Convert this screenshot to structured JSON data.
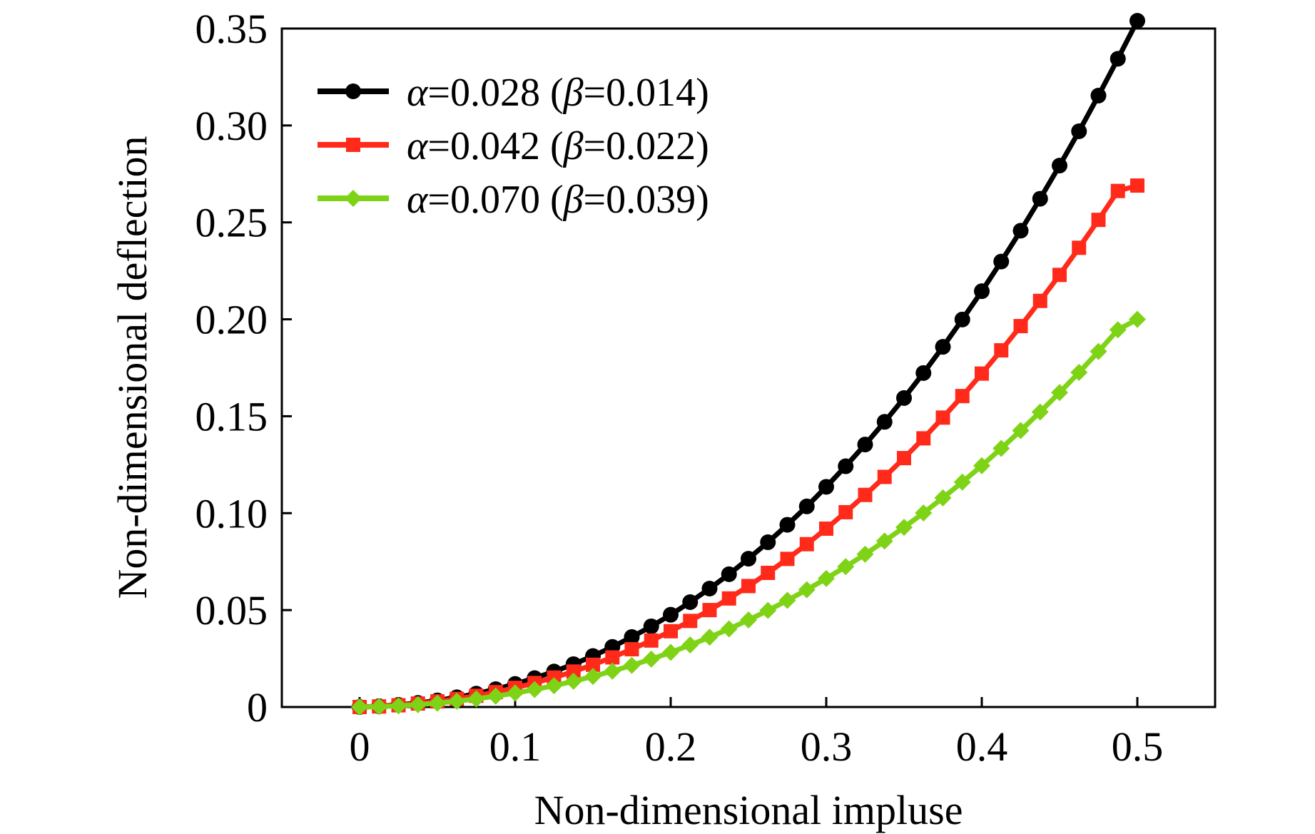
{
  "chart_data": {
    "type": "line",
    "xlabel": "Non-dimensional impluse",
    "ylabel": "Non-dimensional deflection",
    "xlim": [
      -0.05,
      0.55
    ],
    "ylim": [
      0,
      0.35
    ],
    "xticks": [
      0,
      0.1,
      0.2,
      0.3,
      0.4,
      0.5
    ],
    "xtick_labels": [
      "0",
      "0.1",
      "0.2",
      "0.3",
      "0.4",
      "0.5"
    ],
    "yticks": [
      0,
      0.05,
      0.1,
      0.15,
      0.2,
      0.25,
      0.3,
      0.35
    ],
    "ytick_labels": [
      "0",
      "0.05",
      "0.10",
      "0.15",
      "0.20",
      "0.25",
      "0.30",
      "0.35"
    ],
    "grid": false,
    "legend_position": "top-left",
    "x": [
      0,
      0.0125,
      0.025,
      0.0375,
      0.05,
      0.0625,
      0.075,
      0.0875,
      0.1,
      0.1125,
      0.125,
      0.1375,
      0.15,
      0.1625,
      0.175,
      0.1875,
      0.2,
      0.2125,
      0.225,
      0.2375,
      0.25,
      0.2625,
      0.275,
      0.2875,
      0.3,
      0.3125,
      0.325,
      0.3375,
      0.35,
      0.3625,
      0.375,
      0.3875,
      0.4,
      0.4125,
      0.425,
      0.4375,
      0.45,
      0.4625,
      0.475,
      0.4875,
      0.5
    ],
    "series": [
      {
        "label_greek_a": "α",
        "label_text_a": "=0.028 (",
        "label_greek_b": "β",
        "label_text_b": "=0.014)",
        "color": "#000000",
        "marker": "circle",
        "values": [
          0.0,
          0.0004,
          0.0011,
          0.0021,
          0.0034,
          0.005,
          0.0069,
          0.0092,
          0.0119,
          0.0149,
          0.0183,
          0.0221,
          0.0263,
          0.031,
          0.0361,
          0.0416,
          0.0476,
          0.0541,
          0.0611,
          0.0685,
          0.0765,
          0.085,
          0.094,
          0.1035,
          0.1136,
          0.1242,
          0.1354,
          0.1471,
          0.1594,
          0.1723,
          0.1858,
          0.1999,
          0.2145,
          0.2298,
          0.2457,
          0.2622,
          0.2793,
          0.297,
          0.3154,
          0.3344,
          0.354
        ]
      },
      {
        "label_greek_a": "α",
        "label_text_a": "=0.042 (",
        "label_greek_b": "β",
        "label_text_b": "=0.022)",
        "color": "#ff2a1a",
        "marker": "square",
        "values": [
          0.0,
          0.0003,
          0.0009,
          0.0018,
          0.0029,
          0.0042,
          0.0058,
          0.0077,
          0.0099,
          0.0124,
          0.0152,
          0.0183,
          0.0218,
          0.0256,
          0.0298,
          0.0343,
          0.0391,
          0.0444,
          0.05,
          0.056,
          0.0624,
          0.0692,
          0.0764,
          0.084,
          0.092,
          0.1005,
          0.1094,
          0.1187,
          0.1284,
          0.1386,
          0.1493,
          0.1604,
          0.172,
          0.184,
          0.1965,
          0.2095,
          0.2229,
          0.2369,
          0.2513,
          0.2662,
          0.269
        ]
      },
      {
        "label_greek_a": "α",
        "label_text_a": "=0.070 (",
        "label_greek_b": "β",
        "label_text_b": "=0.039)",
        "color": "#7fd316",
        "marker": "diamond",
        "values": [
          0.0,
          0.0002,
          0.0006,
          0.0012,
          0.002,
          0.003,
          0.0042,
          0.0056,
          0.0072,
          0.009,
          0.011,
          0.0133,
          0.0158,
          0.0185,
          0.0215,
          0.0247,
          0.0282,
          0.032,
          0.036,
          0.0403,
          0.0449,
          0.0498,
          0.055,
          0.0605,
          0.0663,
          0.0724,
          0.0788,
          0.0856,
          0.0927,
          0.1001,
          0.1079,
          0.116,
          0.1245,
          0.1334,
          0.1426,
          0.1522,
          0.1622,
          0.1726,
          0.1834,
          0.1946,
          0.2
        ]
      }
    ]
  }
}
